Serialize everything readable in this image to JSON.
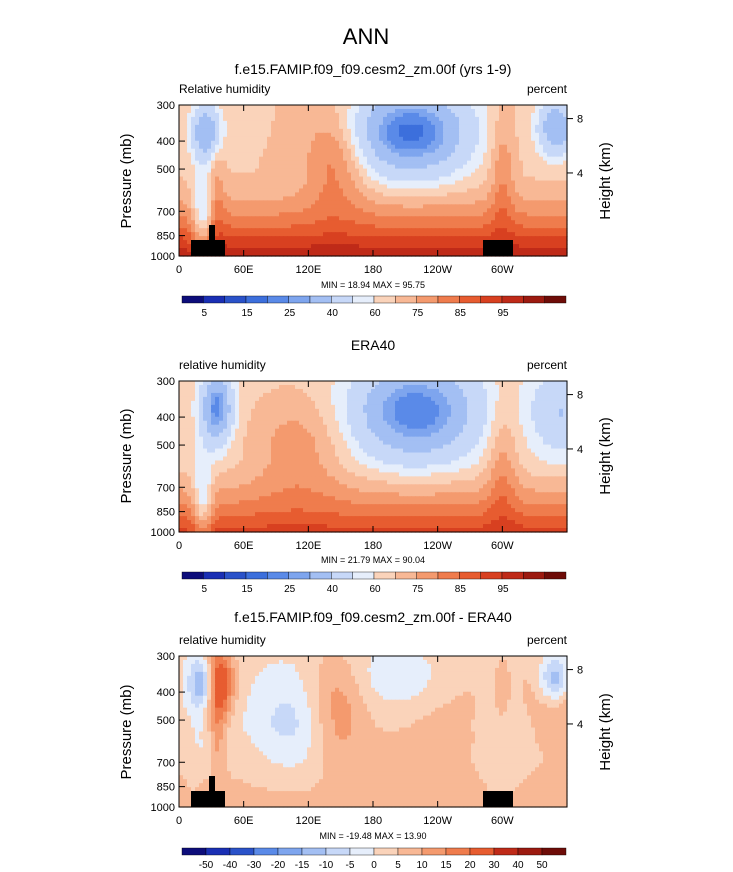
{
  "figure": {
    "title": "ANN"
  },
  "colors": {
    "abs_scale": [
      "#0d0d7a",
      "#1a2fb4",
      "#2a52c9",
      "#3c6fdc",
      "#5a8ae8",
      "#7ea5ee",
      "#a3bff3",
      "#c7d8f8",
      "#e6eefb",
      "#fbe9dc",
      "#fad3ba",
      "#f8b895",
      "#f49a6e",
      "#ef7c4d",
      "#e75c30",
      "#d84020",
      "#bf2a18",
      "#9c1a10",
      "#6e0c08"
    ],
    "diff_scale": [
      "#0d0d7a",
      "#1a2fb4",
      "#2a52c9",
      "#3c6fdc",
      "#5a8ae8",
      "#7ea5ee",
      "#a3bff3",
      "#c7d8f8",
      "#e6eefb",
      "#fbe9dc",
      "#fad3ba",
      "#f8b895",
      "#f49a6e",
      "#ef7c4d",
      "#e75c30",
      "#d84020",
      "#bf2a18",
      "#9c1a10",
      "#6e0c08"
    ]
  },
  "chart_data": [
    {
      "type": "heatmap",
      "title": "f.e15.FAMIP.f09_f09.cesm2_zm.00f (yrs 1-9)",
      "left_label": "Relative humidity",
      "right_label": "percent",
      "ylabel": "Pressure (mb)",
      "ylabel_right": "Height (km)",
      "y_ticks": [
        "300",
        "400",
        "500",
        "700",
        "850",
        "1000"
      ],
      "y_ticks_right": [
        "8",
        "4"
      ],
      "x_ticks": [
        "0",
        "60E",
        "120E",
        "180",
        "120W",
        "60W"
      ],
      "stats": "MIN =  18.94  MAX =  95.75",
      "colorbar_labels": [
        "5",
        "15",
        "25",
        "40",
        "60",
        "75",
        "85",
        "95"
      ],
      "field": "model"
    },
    {
      "type": "heatmap",
      "title": "ERA40",
      "left_label": "relative humidity",
      "right_label": "percent",
      "ylabel": "Pressure (mb)",
      "ylabel_right": "Height (km)",
      "y_ticks": [
        "300",
        "400",
        "500",
        "700",
        "850",
        "1000"
      ],
      "y_ticks_right": [
        "8",
        "4"
      ],
      "x_ticks": [
        "0",
        "60E",
        "120E",
        "180",
        "120W",
        "60W"
      ],
      "stats": "MIN =  21.79  MAX =  90.04",
      "colorbar_labels": [
        "5",
        "15",
        "25",
        "40",
        "60",
        "75",
        "85",
        "95"
      ],
      "field": "obs"
    },
    {
      "type": "heatmap",
      "title": "f.e15.FAMIP.f09_f09.cesm2_zm.00f - ERA40",
      "left_label": "relative humidity",
      "right_label": "percent",
      "ylabel": "Pressure (mb)",
      "ylabel_right": "Height (km)",
      "y_ticks": [
        "300",
        "400",
        "500",
        "700",
        "850",
        "1000"
      ],
      "y_ticks_right": [
        "8",
        "4"
      ],
      "x_ticks": [
        "0",
        "60E",
        "120E",
        "180",
        "120W",
        "60W"
      ],
      "stats": "MIN = -19.48  MAX =  13.90",
      "colorbar_labels": [
        "-50",
        "-40",
        "-30",
        "-20",
        "-15",
        "-10",
        "-5",
        "0",
        "5",
        "10",
        "15",
        "20",
        "30",
        "40",
        "50"
      ],
      "field": "diff"
    }
  ]
}
